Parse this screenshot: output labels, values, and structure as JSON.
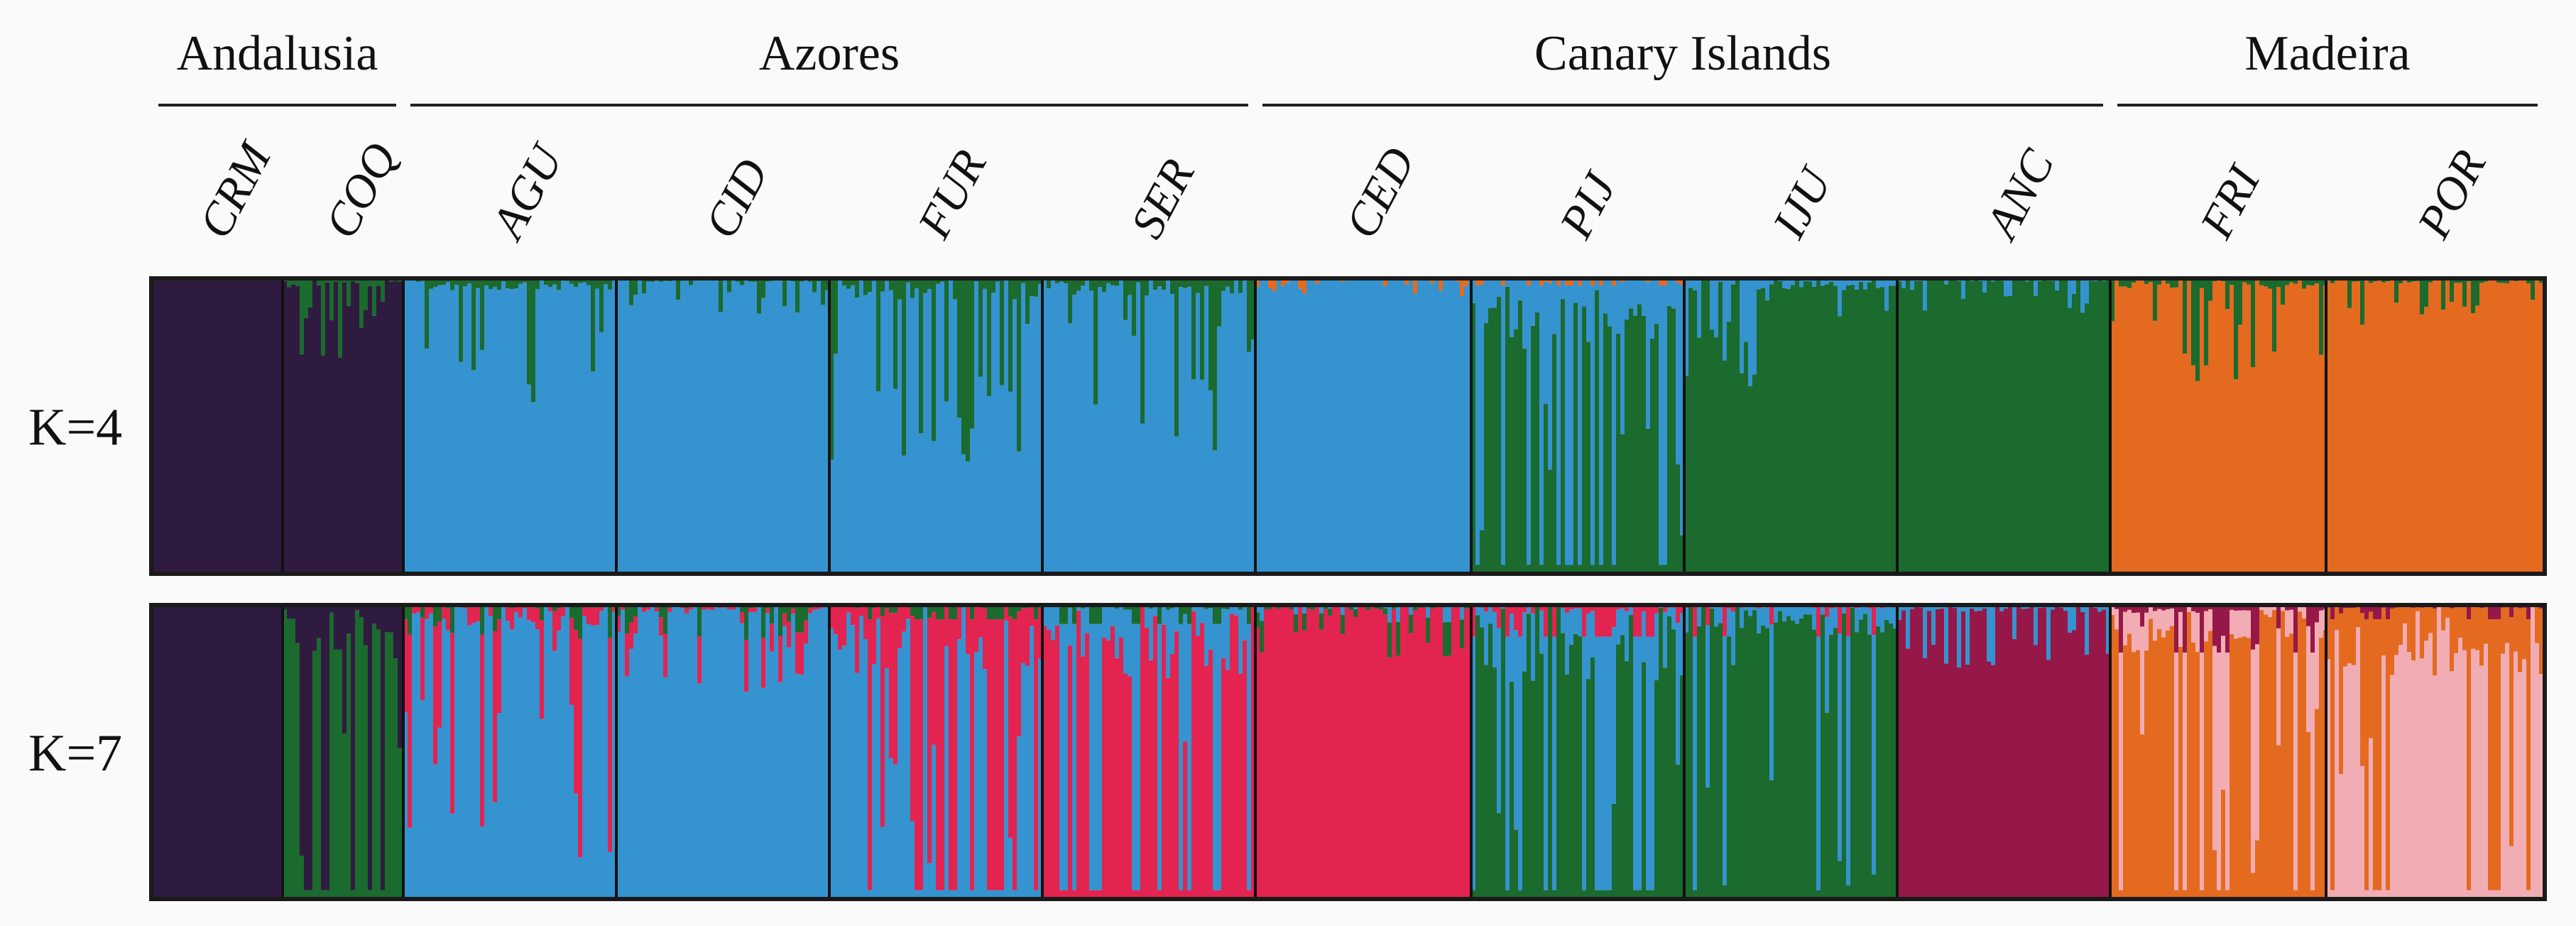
{
  "chart_data": {
    "type": "stacked-bar (STRUCTURE admixture plot)",
    "title": "",
    "regions": [
      {
        "name": "Andalusia",
        "populations": [
          "CRM",
          "COQ"
        ]
      },
      {
        "name": "Azores",
        "populations": [
          "AGU",
          "CID",
          "FUR",
          "SER"
        ]
      },
      {
        "name": "Canary Islands",
        "populations": [
          "CED",
          "PIJ",
          "IJU",
          "ANC"
        ]
      },
      {
        "name": "Madeira",
        "populations": [
          "FRI",
          "POR"
        ]
      }
    ],
    "populations": [
      "CRM",
      "COQ",
      "AGU",
      "CID",
      "FUR",
      "SER",
      "CED",
      "PIJ",
      "IJU",
      "ANC",
      "FRI",
      "POR"
    ],
    "clusters": {
      "purple": "#2f1b3f",
      "blue": "#3593cf",
      "green": "#1b6a2e",
      "orange": "#e46a20",
      "red": "#e32350",
      "maroon": "#961848",
      "pink": "#f1adb3"
    },
    "panels": [
      {
        "label": "K=4",
        "k": 4,
        "dominant_cluster": {
          "CRM": "purple",
          "COQ": "purple",
          "AGU": "blue",
          "CID": "blue",
          "FUR": "blue",
          "SER": "blue",
          "CED": "blue",
          "PIJ": "green",
          "IJU": "green",
          "ANC": "green",
          "FRI": "orange",
          "POR": "orange"
        },
        "approx_mean_proportions": {
          "CRM": {
            "purple": 1.0
          },
          "COQ": {
            "purple": 0.95,
            "green": 0.05
          },
          "AGU": {
            "blue": 0.93,
            "green": 0.07
          },
          "CID": {
            "blue": 0.98,
            "green": 0.02
          },
          "FUR": {
            "blue": 0.88,
            "green": 0.12
          },
          "SER": {
            "blue": 0.9,
            "green": 0.1
          },
          "CED": {
            "blue": 0.99,
            "orange": 0.01
          },
          "PIJ": {
            "green": 0.6,
            "blue": 0.39,
            "orange": 0.01
          },
          "IJU": {
            "green": 0.93,
            "blue": 0.07
          },
          "ANC": {
            "green": 0.98,
            "blue": 0.02
          },
          "FRI": {
            "orange": 0.94,
            "green": 0.06
          },
          "POR": {
            "orange": 0.97,
            "green": 0.03
          }
        }
      },
      {
        "label": "K=7",
        "k": 7,
        "dominant_cluster": {
          "CRM": "purple",
          "COQ": "green",
          "AGU": "blue",
          "CID": "blue",
          "FUR": "blue",
          "SER": "red",
          "CED": "red",
          "PIJ": "green",
          "IJU": "green",
          "ANC": "maroon",
          "FRI": "orange",
          "POR": "pink"
        },
        "approx_mean_proportions": {
          "CRM": {
            "purple": 1.0
          },
          "COQ": {
            "purple": 0.35,
            "green": 0.65
          },
          "AGU": {
            "blue": 0.85,
            "red": 0.13,
            "green": 0.02
          },
          "CID": {
            "blue": 0.95,
            "red": 0.03,
            "green": 0.02
          },
          "FUR": {
            "blue": 0.6,
            "red": 0.38,
            "green": 0.02
          },
          "SER": {
            "red": 0.55,
            "blue": 0.42,
            "green": 0.03
          },
          "CED": {
            "red": 0.97,
            "green": 0.02,
            "blue": 0.01
          },
          "PIJ": {
            "green": 0.55,
            "blue": 0.4,
            "red": 0.05
          },
          "IJU": {
            "green": 0.82,
            "blue": 0.16,
            "red": 0.02
          },
          "ANC": {
            "maroon": 0.96,
            "blue": 0.04
          },
          "FRI": {
            "orange": 0.7,
            "pink": 0.25,
            "maroon": 0.05
          },
          "POR": {
            "pink": 0.6,
            "orange": 0.38,
            "maroon": 0.02
          }
        }
      }
    ]
  }
}
